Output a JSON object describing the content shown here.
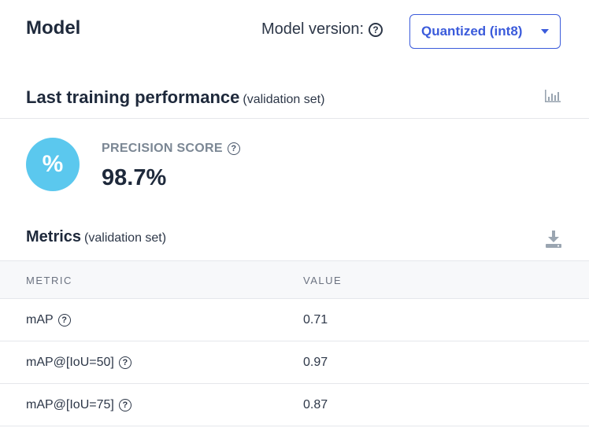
{
  "header": {
    "title": "Model",
    "version_label": "Model version:",
    "version_selected": "Quantized (int8)"
  },
  "performance": {
    "title": "Last training performance",
    "subtitle": "(validation set)",
    "score_icon_text": "%",
    "score_label": "PRECISION SCORE",
    "score_value": "98.7%"
  },
  "metrics": {
    "title": "Metrics",
    "subtitle": "(validation set)",
    "columns": [
      "METRIC",
      "VALUE"
    ],
    "rows": [
      {
        "metric": "mAP",
        "value": "0.71"
      },
      {
        "metric": "mAP@[IoU=50]",
        "value": "0.97"
      },
      {
        "metric": "mAP@[IoU=75]",
        "value": "0.87"
      }
    ]
  },
  "icons": {
    "help": "?",
    "chart": "bar-chart-icon",
    "download": "download-icon"
  },
  "colors": {
    "accent": "#3b5bdb",
    "score_circle": "#5bc8ee",
    "icon_gray": "#9aa5b1"
  }
}
